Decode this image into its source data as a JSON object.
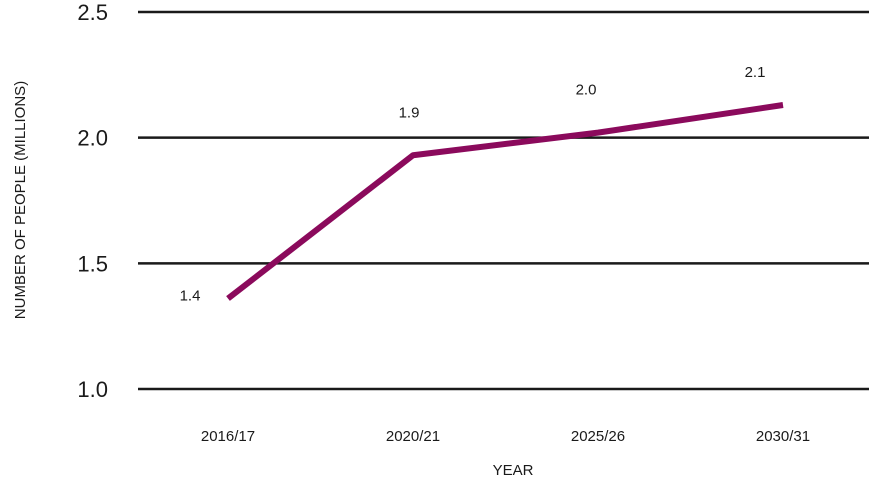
{
  "chart_data": {
    "type": "line",
    "categories": [
      "2016/17",
      "2020/21",
      "2025/26",
      "2030/31"
    ],
    "series": [
      {
        "values": [
          1.36,
          1.93,
          2.02,
          2.13
        ],
        "data_labels": [
          "1.4",
          "1.9",
          "2.0",
          "2.1"
        ],
        "color": "#8b0a5c"
      }
    ],
    "ylim": [
      1.0,
      2.5
    ],
    "yticks": [
      1.0,
      1.5,
      2.0,
      2.5
    ],
    "ytick_labels": [
      "1.0",
      "1.5",
      "2.0",
      "2.5"
    ],
    "xlabel": "YEAR",
    "ylabel": "NUMBER OF PEOPLE (MILLIONS)",
    "grid": true,
    "grid_color": "#1a1a1a"
  }
}
